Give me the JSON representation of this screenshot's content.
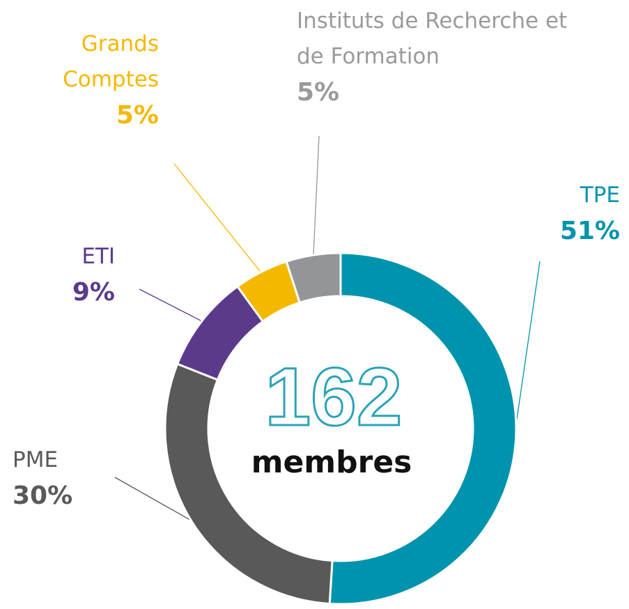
{
  "chart_data": {
    "type": "donut",
    "categories": [
      "TPE",
      "PME",
      "ETI",
      "Grands Comptes",
      "Instituts de Recherche et de Formation"
    ],
    "values": [
      51,
      30,
      9,
      5,
      5
    ],
    "value_labels": [
      "51%",
      "30%",
      "9%",
      "5%",
      "5%"
    ],
    "colors": [
      "#0093ad",
      "#595959",
      "#5b3a8c",
      "#f5b800",
      "#939598"
    ],
    "label_colors": [
      "#0093ad",
      "#595959",
      "#5b3a8c",
      "#f5b800",
      "#9a9a9a"
    ],
    "center_value": 162,
    "center_label": "membres"
  }
}
